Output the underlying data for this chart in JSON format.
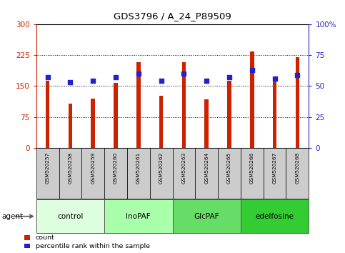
{
  "title": "GDS3796 / A_24_P89509",
  "samples": [
    "GSM520257",
    "GSM520258",
    "GSM520259",
    "GSM520260",
    "GSM520261",
    "GSM520262",
    "GSM520263",
    "GSM520264",
    "GSM520265",
    "GSM520266",
    "GSM520267",
    "GSM520268"
  ],
  "counts": [
    163,
    107,
    120,
    157,
    207,
    127,
    207,
    117,
    163,
    233,
    163,
    220
  ],
  "percentiles": [
    57,
    53,
    54,
    57,
    60,
    54,
    60,
    54,
    57,
    63,
    56,
    59
  ],
  "groups": [
    {
      "label": "control",
      "start": 0,
      "end": 3,
      "color": "#ddffdd"
    },
    {
      "label": "InoPAF",
      "start": 3,
      "end": 6,
      "color": "#aaffaa"
    },
    {
      "label": "GlcPAF",
      "start": 6,
      "end": 9,
      "color": "#66dd66"
    },
    {
      "label": "edelfosine",
      "start": 9,
      "end": 12,
      "color": "#33cc33"
    }
  ],
  "bar_color": "#cc2200",
  "dot_color": "#2222cc",
  "left_ylim": [
    0,
    300
  ],
  "right_ylim": [
    0,
    100
  ],
  "left_yticks": [
    0,
    75,
    150,
    225,
    300
  ],
  "right_yticks": [
    0,
    25,
    50,
    75,
    100
  ],
  "right_yticklabels": [
    "0",
    "25",
    "50",
    "75",
    "100%"
  ],
  "grid_values": [
    75,
    150,
    225
  ],
  "sample_bg_color": "#cccccc",
  "legend_count_label": "count",
  "legend_pct_label": "percentile rank within the sample",
  "agent_label": "agent",
  "bar_width": 0.18
}
